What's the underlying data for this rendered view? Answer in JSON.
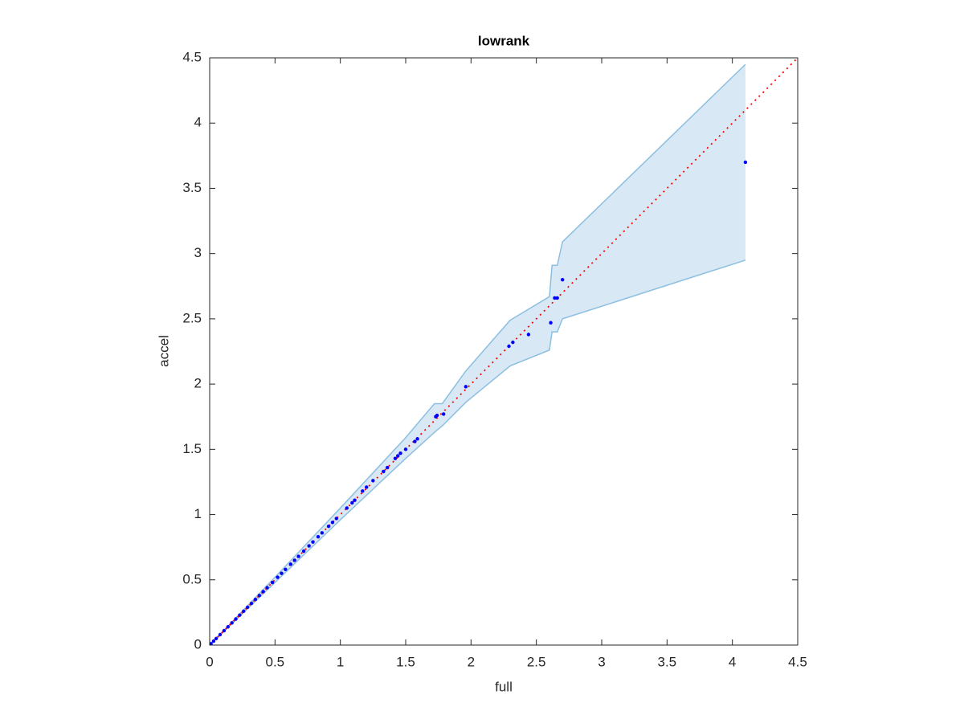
{
  "chart_data": {
    "type": "scatter",
    "title": "lowrank",
    "x_label": "full",
    "y_label": "accel",
    "xlim": [
      0,
      4.5
    ],
    "ylim": [
      0,
      4.5
    ],
    "xticks": [
      0,
      0.5,
      1,
      1.5,
      2,
      2.5,
      3,
      3.5,
      4,
      4.5
    ],
    "yticks": [
      0,
      0.5,
      1,
      1.5,
      2,
      2.5,
      3,
      3.5,
      4,
      4.5
    ],
    "box": true,
    "band": {
      "x": [
        0,
        0.5,
        1.0,
        1.5,
        1.72,
        1.78,
        1.96,
        2.3,
        2.6,
        2.62,
        2.66,
        2.7,
        4.1
      ],
      "upper": [
        0,
        0.52,
        1.05,
        1.59,
        1.85,
        1.85,
        2.1,
        2.49,
        2.67,
        2.91,
        2.91,
        3.09,
        4.45
      ],
      "lower": [
        0,
        0.48,
        0.96,
        1.43,
        1.63,
        1.68,
        1.86,
        2.14,
        2.26,
        2.4,
        2.4,
        2.5,
        2.95
      ],
      "color": "#d8e8f4",
      "edge_color": "#8cbfe0"
    },
    "reference_line": {
      "x": [
        0,
        4.5
      ],
      "y": [
        0,
        4.5
      ],
      "color": "#ff0000",
      "style": "dotted"
    },
    "points": {
      "color": "#0000ff",
      "x": [
        4.1,
        2.7,
        2.66,
        2.64,
        2.61,
        2.44,
        2.32,
        2.29,
        1.96,
        1.79,
        1.74,
        1.73,
        1.59,
        1.57,
        1.5,
        1.46,
        1.44,
        1.42,
        1.36,
        1.33,
        1.25,
        1.2,
        1.17,
        1.11,
        1.09,
        1.05,
        0.97,
        0.94,
        0.91,
        0.86,
        0.83,
        0.79,
        0.76,
        0.72,
        0.68,
        0.65,
        0.62,
        0.58,
        0.55,
        0.52,
        0.48,
        0.44,
        0.41,
        0.38,
        0.35,
        0.32,
        0.29,
        0.26,
        0.23,
        0.2,
        0.17,
        0.14,
        0.11,
        0.08,
        0.05,
        0.03,
        0.01
      ],
      "y": [
        3.7,
        2.8,
        2.66,
        2.66,
        2.47,
        2.38,
        2.32,
        2.29,
        1.98,
        1.77,
        1.76,
        1.75,
        1.58,
        1.56,
        1.5,
        1.47,
        1.45,
        1.43,
        1.36,
        1.33,
        1.26,
        1.21,
        1.18,
        1.11,
        1.09,
        1.05,
        0.97,
        0.94,
        0.91,
        0.86,
        0.83,
        0.79,
        0.76,
        0.72,
        0.68,
        0.65,
        0.62,
        0.58,
        0.55,
        0.52,
        0.48,
        0.44,
        0.41,
        0.38,
        0.35,
        0.32,
        0.29,
        0.26,
        0.23,
        0.2,
        0.17,
        0.14,
        0.11,
        0.08,
        0.05,
        0.03,
        0.01
      ]
    }
  }
}
